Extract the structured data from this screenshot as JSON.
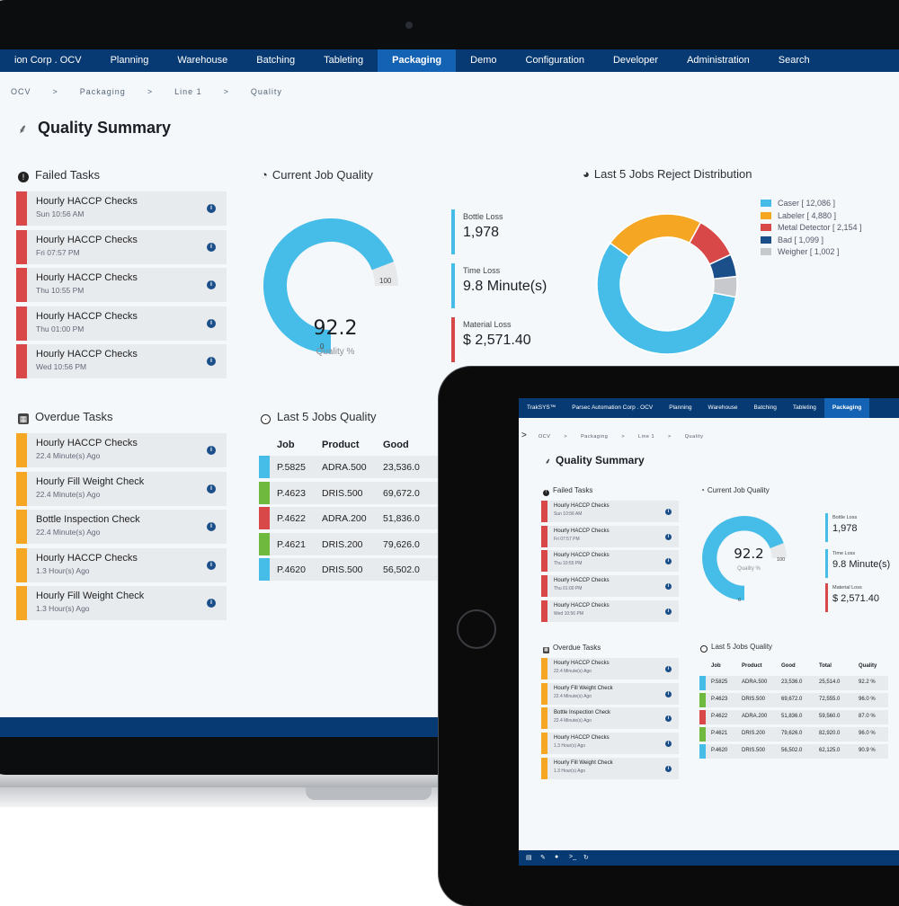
{
  "colors": {
    "nav": "#073a72",
    "nav_active": "#1462b3",
    "red": "#d94848",
    "amber": "#f5a623",
    "blue": "#45bde8",
    "green": "#6fb93f",
    "dark_blue": "#1b4f8a",
    "gray": "#c7c9cc"
  },
  "nav": [
    "ion Corp . OCV",
    "Planning",
    "Warehouse",
    "Batching",
    "Tableting",
    "Packaging",
    "Demo",
    "Configuration",
    "Developer",
    "Administration",
    "Search"
  ],
  "breadcrumb": [
    "OCV",
    ">",
    "Packaging",
    ">",
    "Line 1",
    ">",
    "Quality"
  ],
  "page_title": "Quality Summary",
  "failed_tasks": {
    "title": "Failed Tasks",
    "items": [
      {
        "name": "Hourly HACCP Checks",
        "time": "Sun 10:56 AM"
      },
      {
        "name": "Hourly HACCP Checks",
        "time": "Fri 07:57 PM"
      },
      {
        "name": "Hourly HACCP Checks",
        "time": "Thu 10:55 PM"
      },
      {
        "name": "Hourly HACCP Checks",
        "time": "Thu 01:00 PM"
      },
      {
        "name": "Hourly HACCP Checks",
        "time": "Wed 10:56 PM"
      }
    ]
  },
  "overdue_tasks": {
    "title": "Overdue Tasks",
    "items": [
      {
        "name": "Hourly HACCP Checks",
        "time": "22.4 Minute(s) Ago"
      },
      {
        "name": "Hourly Fill Weight Check",
        "time": "22.4 Minute(s) Ago"
      },
      {
        "name": "Bottle Inspection Check",
        "time": "22.4 Minute(s) Ago"
      },
      {
        "name": "Hourly HACCP Checks",
        "time": "1.3 Hour(s) Ago"
      },
      {
        "name": "Hourly Fill Weight Check",
        "time": "1.3 Hour(s) Ago"
      }
    ]
  },
  "current_job_quality": {
    "title": "Current Job Quality",
    "value": "92.2",
    "fraction": 0.922,
    "label": "Quality %",
    "max": "100",
    "min": "0"
  },
  "losses": [
    {
      "label": "Bottle Loss",
      "value": "1,978",
      "color": "#45bde8"
    },
    {
      "label": "Time Loss",
      "value": "9.8 Minute(s)",
      "color": "#45bde8"
    },
    {
      "label": "Material Loss",
      "value": "$ 2,571.40",
      "color": "#d94848"
    }
  ],
  "reject_distribution": {
    "title": "Last 5 Jobs Reject Distribution",
    "legend": [
      "Caser [ 12,086 ]",
      "Labeler [ 4,880 ]",
      "Metal Detector [ 2,154 ]",
      "Bad [ 1,099 ]",
      "Weigher [ 1,002 ]"
    ]
  },
  "last_jobs": {
    "title": "Last 5 Jobs Quality",
    "columns": [
      "Job",
      "Product",
      "Good",
      "Total",
      "Quality"
    ],
    "rows": [
      {
        "job": "P.5825",
        "product": "ADRA.500",
        "good": "23,536.0",
        "total": "25,514.0",
        "quality": "92.2 %",
        "color": "#45bde8"
      },
      {
        "job": "P.4623",
        "product": "DRIS.500",
        "good": "69,672.0",
        "total": "72,555.0",
        "quality": "96.0 %",
        "color": "#6fb93f"
      },
      {
        "job": "P.4622",
        "product": "ADRA.200",
        "good": "51,836.0",
        "total": "59,560.0",
        "quality": "87.0 %",
        "color": "#d94848"
      },
      {
        "job": "P.4621",
        "product": "DRIS.200",
        "good": "79,626.0",
        "total": "82,920.0",
        "quality": "96.0 %",
        "color": "#6fb93f"
      },
      {
        "job": "P.4620",
        "product": "DRIS.500",
        "good": "56,502.0",
        "total": "62,125.0",
        "quality": "90.9 %",
        "color": "#45bde8"
      }
    ]
  },
  "chart_data": {
    "type": "pie",
    "categories": [
      "Caser",
      "Labeler",
      "Metal Detector",
      "Bad",
      "Weigher"
    ],
    "values": [
      12086,
      4880,
      2154,
      1099,
      1002
    ],
    "colors": [
      "#45bde8",
      "#f5a623",
      "#d94848",
      "#1b4f8a",
      "#c7c9cc"
    ],
    "title": "Last 5 Jobs Reject Distribution",
    "legend": "right"
  },
  "tablet": {
    "nav": [
      "TrakSYS™",
      "Parsec Automation Corp . OCV",
      "Planning",
      "Warehouse",
      "Batching",
      "Tableting",
      "Packaging"
    ],
    "chevron": ">",
    "bottom_icons": [
      "▤",
      "✎",
      "●",
      ">_",
      "↻"
    ]
  }
}
